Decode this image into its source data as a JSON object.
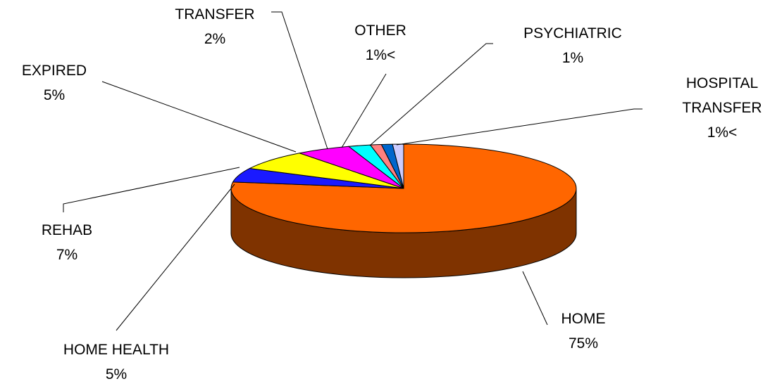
{
  "chart_data": {
    "type": "pie3d",
    "categories": [
      "HOME",
      "HOME HEALTH",
      "REHAB",
      "EXPIRED",
      "TRANSFER",
      "OTHER",
      "PSYCHIATRIC",
      "HOSPITAL TRANSFER"
    ],
    "values": [
      75,
      5,
      7,
      5,
      2,
      1,
      1,
      1
    ],
    "value_labels": [
      "75%",
      "5%",
      "7%",
      "5%",
      "2%",
      "1%<",
      "1%",
      "1%<"
    ],
    "colors": [
      "#ff6600",
      "#1a1aff",
      "#ffff00",
      "#ff00ff",
      "#00ffff",
      "#ff8080",
      "#0066cc",
      "#ccccff"
    ]
  }
}
